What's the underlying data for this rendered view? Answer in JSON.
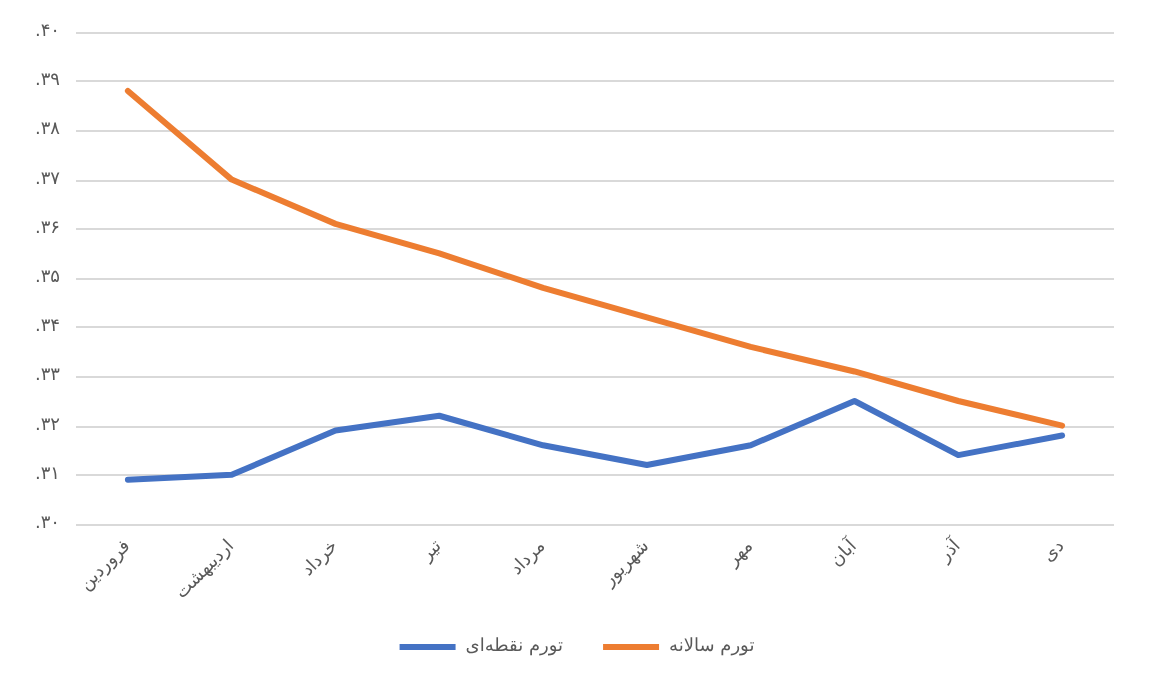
{
  "chart_data": {
    "type": "line",
    "categories": [
      "فروردین",
      "اردیبهشت",
      "خرداد",
      "تیر",
      "مرداد",
      "شهریور",
      "مهر",
      "آبان",
      "آذر",
      "دی"
    ],
    "series": [
      {
        "name": "تورم نقطه‌ای",
        "color": "#4472c4",
        "values": [
          0.309,
          0.31,
          0.319,
          0.322,
          0.316,
          0.312,
          0.316,
          0.325,
          0.314,
          0.318
        ]
      },
      {
        "name": "تورم سالانه",
        "color": "#ed7d31",
        "values": [
          0.388,
          0.37,
          0.361,
          0.355,
          0.348,
          0.342,
          0.336,
          0.331,
          0.325,
          0.32
        ]
      }
    ],
    "ylim": [
      0.3,
      0.4
    ],
    "yticks": [
      {
        "value": 0.3,
        "label": ".۳۰"
      },
      {
        "value": 0.31,
        "label": ".۳۱"
      },
      {
        "value": 0.32,
        "label": ".۳۲"
      },
      {
        "value": 0.33,
        "label": ".۳۳"
      },
      {
        "value": 0.34,
        "label": ".۳۴"
      },
      {
        "value": 0.35,
        "label": ".۳۵"
      },
      {
        "value": 0.36,
        "label": ".۳۶"
      },
      {
        "value": 0.37,
        "label": ".۳۷"
      },
      {
        "value": 0.38,
        "label": ".۳۸"
      },
      {
        "value": 0.39,
        "label": ".۳۹"
      },
      {
        "value": 0.4,
        "label": ".۴۰"
      }
    ],
    "grid": "y",
    "legend": "bottom",
    "marker": "none",
    "line_style": "solid"
  }
}
